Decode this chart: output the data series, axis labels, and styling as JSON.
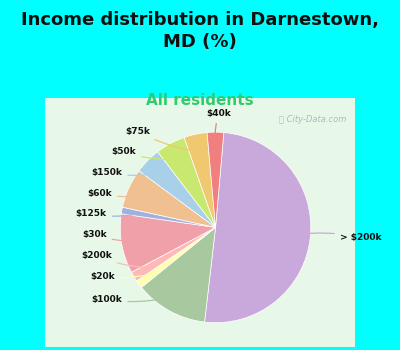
{
  "title": "Income distribution in Darnestown,\nMD (%)",
  "subtitle": "All residents",
  "background_color": "#00FFFF",
  "chart_bg": "#ddf0dd",
  "watermark": "ⓘ City-Data.com",
  "slices": [
    {
      "label": "> $200k",
      "value": 45.0,
      "color": "#C9A8DC"
    },
    {
      "label": "$100k",
      "value": 11.0,
      "color": "#A8C8A0"
    },
    {
      "label": "$20k",
      "value": 1.2,
      "color": "#FFFFB0"
    },
    {
      "label": "$200k",
      "value": 1.5,
      "color": "#FFB8B8"
    },
    {
      "label": "$30k",
      "value": 9.0,
      "color": "#F0A0A8"
    },
    {
      "label": "$125k",
      "value": 1.0,
      "color": "#A0B0E0"
    },
    {
      "label": "$60k",
      "value": 6.0,
      "color": "#F0C090"
    },
    {
      "label": "$150k",
      "value": 4.0,
      "color": "#A8D0E8"
    },
    {
      "label": "$50k",
      "value": 4.5,
      "color": "#C8E870"
    },
    {
      "label": "$75k",
      "value": 3.5,
      "color": "#F0C870"
    },
    {
      "label": "$40k",
      "value": 2.5,
      "color": "#F08080"
    }
  ],
  "label_color": "#111111",
  "title_fontsize": 13,
  "subtitle_fontsize": 11,
  "subtitle_color": "#2ecc71"
}
